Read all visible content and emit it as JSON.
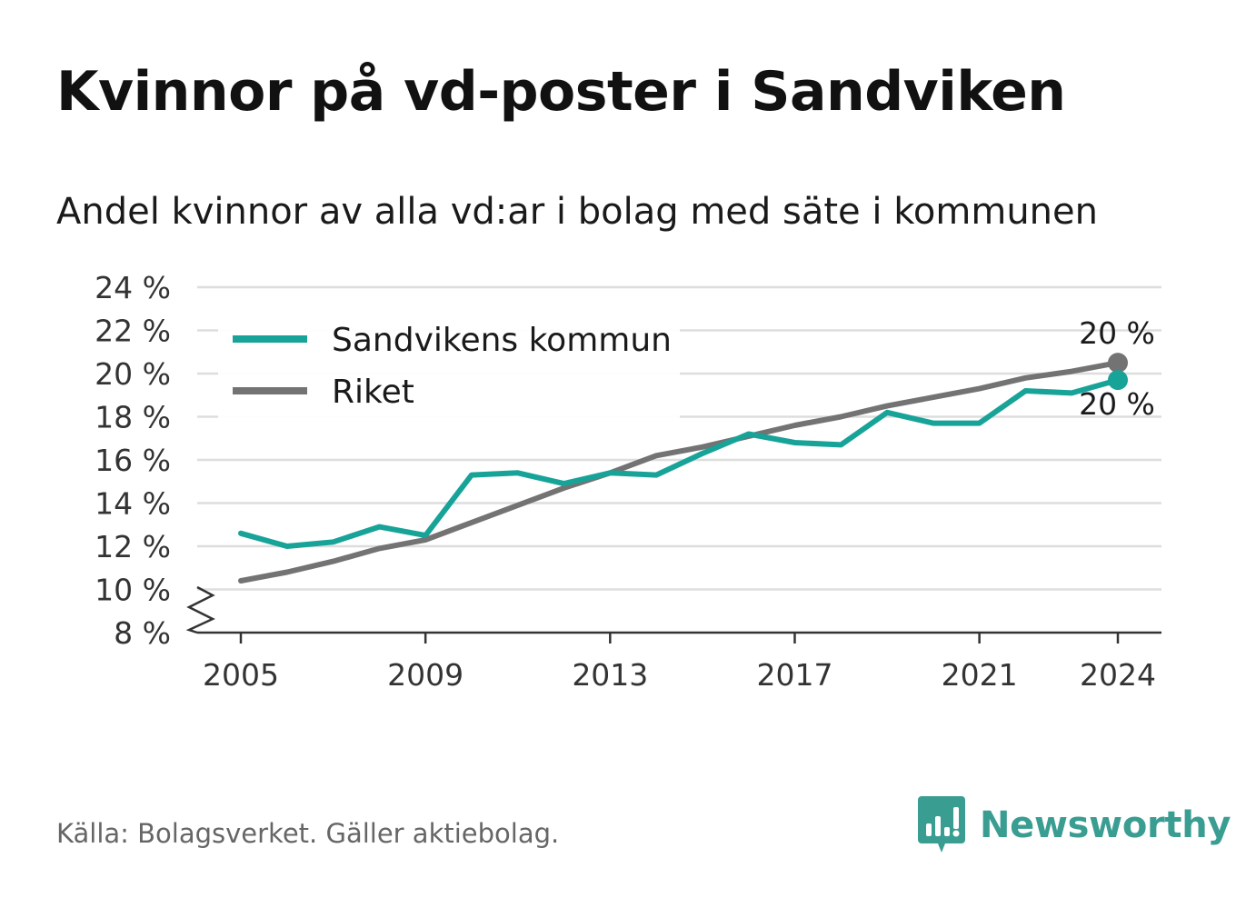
{
  "title": "Kvinnor på vd-poster i Sandviken",
  "subtitle": "Andel kvinnor av alla vd:ar i bolag med säte i kommunen",
  "source": "Källa: Bolagsverket. Gäller aktiebolag.",
  "brand": {
    "name": "Newsworthy",
    "icon": "newsworthy-logo-icon",
    "color": "#3a9d92"
  },
  "chart_data": {
    "type": "line",
    "title": "Kvinnor på vd-poster i Sandviken",
    "subtitle": "Andel kvinnor av alla vd:ar i bolag med säte i kommunen",
    "xlabel": "",
    "ylabel": "",
    "x": [
      2005,
      2006,
      2007,
      2008,
      2009,
      2010,
      2011,
      2012,
      2013,
      2014,
      2015,
      2016,
      2017,
      2018,
      2019,
      2020,
      2021,
      2022,
      2023,
      2024
    ],
    "x_ticks": [
      "2005",
      "2009",
      "2013",
      "2017",
      "2021",
      "2024"
    ],
    "y_ticks": [
      "8 %",
      "10 %",
      "12 %",
      "14 %",
      "16 %",
      "18 %",
      "20 %",
      "22 %",
      "24 %"
    ],
    "y_tick_values": [
      8,
      10,
      12,
      14,
      16,
      18,
      20,
      22,
      24
    ],
    "ylim": [
      8,
      24
    ],
    "y_axis_break": true,
    "grid": true,
    "legend_position": "top-left",
    "series": [
      {
        "name": "Sandvikens kommun",
        "color": "#17a398",
        "values": [
          12.6,
          12.0,
          12.2,
          12.9,
          12.5,
          15.3,
          15.4,
          14.9,
          15.4,
          15.3,
          16.3,
          17.2,
          16.8,
          16.7,
          18.2,
          17.7,
          17.7,
          19.2,
          19.1,
          19.7
        ],
        "end_label": "20 %"
      },
      {
        "name": "Riket",
        "color": "#737373",
        "values": [
          10.4,
          10.8,
          11.3,
          11.9,
          12.3,
          13.1,
          13.9,
          14.7,
          15.4,
          16.2,
          16.6,
          17.1,
          17.6,
          18.0,
          18.5,
          18.9,
          19.3,
          19.8,
          20.1,
          20.5
        ],
        "end_label": "20 %"
      }
    ]
  }
}
